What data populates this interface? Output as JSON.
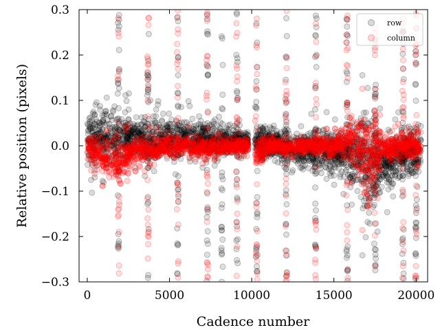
{
  "chart_data": {
    "type": "scatter",
    "title": "",
    "xlabel": "Cadence number",
    "ylabel": "Relative position (pixels)",
    "xlim": [
      -500,
      20700
    ],
    "ylim": [
      -0.3,
      0.3
    ],
    "x_ticks": [
      0,
      5000,
      10000,
      15000,
      20000
    ],
    "y_ticks": [
      -0.3,
      -0.2,
      -0.1,
      0.0,
      0.1,
      0.2,
      0.3
    ],
    "y_tick_labels": [
      "−0.3",
      "−0.2",
      "−0.1",
      "0.0",
      "0.1",
      "0.2",
      "0.3"
    ],
    "x_tick_labels": [
      "0",
      "5000",
      "10000",
      "15000",
      "20000"
    ],
    "grid": false,
    "legend": "top-right",
    "colors": {
      "row": "#000000",
      "column": "#ff0000"
    },
    "data_gap": [
      9800,
      10200
    ],
    "series": [
      {
        "name": "row",
        "color": "#000000",
        "envelope": [
          {
            "x": 0,
            "upper": 0.13,
            "lower": -0.09
          },
          {
            "x": 1000,
            "upper": 0.13,
            "lower": -0.09
          },
          {
            "x": 2000,
            "upper": 0.11,
            "lower": -0.08
          },
          {
            "x": 3000,
            "upper": 0.1,
            "lower": -0.06
          },
          {
            "x": 4000,
            "upper": 0.1,
            "lower": -0.07
          },
          {
            "x": 5000,
            "upper": 0.09,
            "lower": -0.06
          },
          {
            "x": 6000,
            "upper": 0.09,
            "lower": -0.06
          },
          {
            "x": 7000,
            "upper": 0.08,
            "lower": -0.05
          },
          {
            "x": 8000,
            "upper": 0.07,
            "lower": -0.05
          },
          {
            "x": 9000,
            "upper": 0.06,
            "lower": -0.04
          },
          {
            "x": 9800,
            "upper": 0.05,
            "lower": -0.04
          },
          {
            "x": 10200,
            "upper": 0.08,
            "lower": -0.06
          },
          {
            "x": 11000,
            "upper": 0.06,
            "lower": -0.05
          },
          {
            "x": 12000,
            "upper": 0.06,
            "lower": -0.06
          },
          {
            "x": 13000,
            "upper": 0.06,
            "lower": -0.08
          },
          {
            "x": 14000,
            "upper": 0.07,
            "lower": -0.09
          },
          {
            "x": 15000,
            "upper": 0.07,
            "lower": -0.1
          },
          {
            "x": 16000,
            "upper": 0.09,
            "lower": -0.12
          },
          {
            "x": 17000,
            "upper": 0.16,
            "lower": -0.25
          },
          {
            "x": 18000,
            "upper": 0.07,
            "lower": -0.14
          },
          {
            "x": 19000,
            "upper": 0.08,
            "lower": -0.12
          },
          {
            "x": 20300,
            "upper": 0.08,
            "lower": -0.1
          }
        ]
      },
      {
        "name": "column",
        "color": "#ff0000",
        "envelope": [
          {
            "x": 0,
            "upper": 0.05,
            "lower": -0.05
          },
          {
            "x": 1000,
            "upper": 0.05,
            "lower": -0.1
          },
          {
            "x": 2000,
            "upper": 0.04,
            "lower": -0.11
          },
          {
            "x": 3000,
            "upper": 0.04,
            "lower": -0.06
          },
          {
            "x": 4000,
            "upper": 0.04,
            "lower": -0.05
          },
          {
            "x": 5000,
            "upper": 0.04,
            "lower": -0.04
          },
          {
            "x": 6000,
            "upper": 0.04,
            "lower": -0.04
          },
          {
            "x": 7000,
            "upper": 0.03,
            "lower": -0.04
          },
          {
            "x": 8000,
            "upper": 0.03,
            "lower": -0.03
          },
          {
            "x": 9000,
            "upper": 0.03,
            "lower": -0.03
          },
          {
            "x": 9800,
            "upper": 0.03,
            "lower": -0.03
          },
          {
            "x": 10200,
            "upper": 0.05,
            "lower": -0.08
          },
          {
            "x": 11000,
            "upper": 0.03,
            "lower": -0.03
          },
          {
            "x": 12000,
            "upper": 0.03,
            "lower": -0.03
          },
          {
            "x": 13000,
            "upper": 0.03,
            "lower": -0.03
          },
          {
            "x": 14000,
            "upper": 0.03,
            "lower": -0.03
          },
          {
            "x": 15000,
            "upper": 0.04,
            "lower": -0.04
          },
          {
            "x": 16000,
            "upper": 0.1,
            "lower": -0.07
          },
          {
            "x": 17000,
            "upper": 0.12,
            "lower": -0.2
          },
          {
            "x": 18000,
            "upper": 0.06,
            "lower": -0.06
          },
          {
            "x": 19000,
            "upper": 0.05,
            "lower": -0.05
          },
          {
            "x": 20300,
            "upper": 0.05,
            "lower": -0.05
          }
        ]
      }
    ],
    "outlier_columns": [
      {
        "x": 1900,
        "series": "both"
      },
      {
        "x": 3700,
        "series": "both"
      },
      {
        "x": 5500,
        "series": "both"
      },
      {
        "x": 7300,
        "series": "both"
      },
      {
        "x": 8200,
        "series": "row"
      },
      {
        "x": 9100,
        "series": "both"
      },
      {
        "x": 10300,
        "series": "both"
      },
      {
        "x": 12100,
        "series": "both"
      },
      {
        "x": 13900,
        "series": "both"
      },
      {
        "x": 15800,
        "series": "both"
      },
      {
        "x": 17500,
        "series": "both"
      },
      {
        "x": 19200,
        "series": "both"
      },
      {
        "x": 20000,
        "series": "both"
      }
    ]
  }
}
